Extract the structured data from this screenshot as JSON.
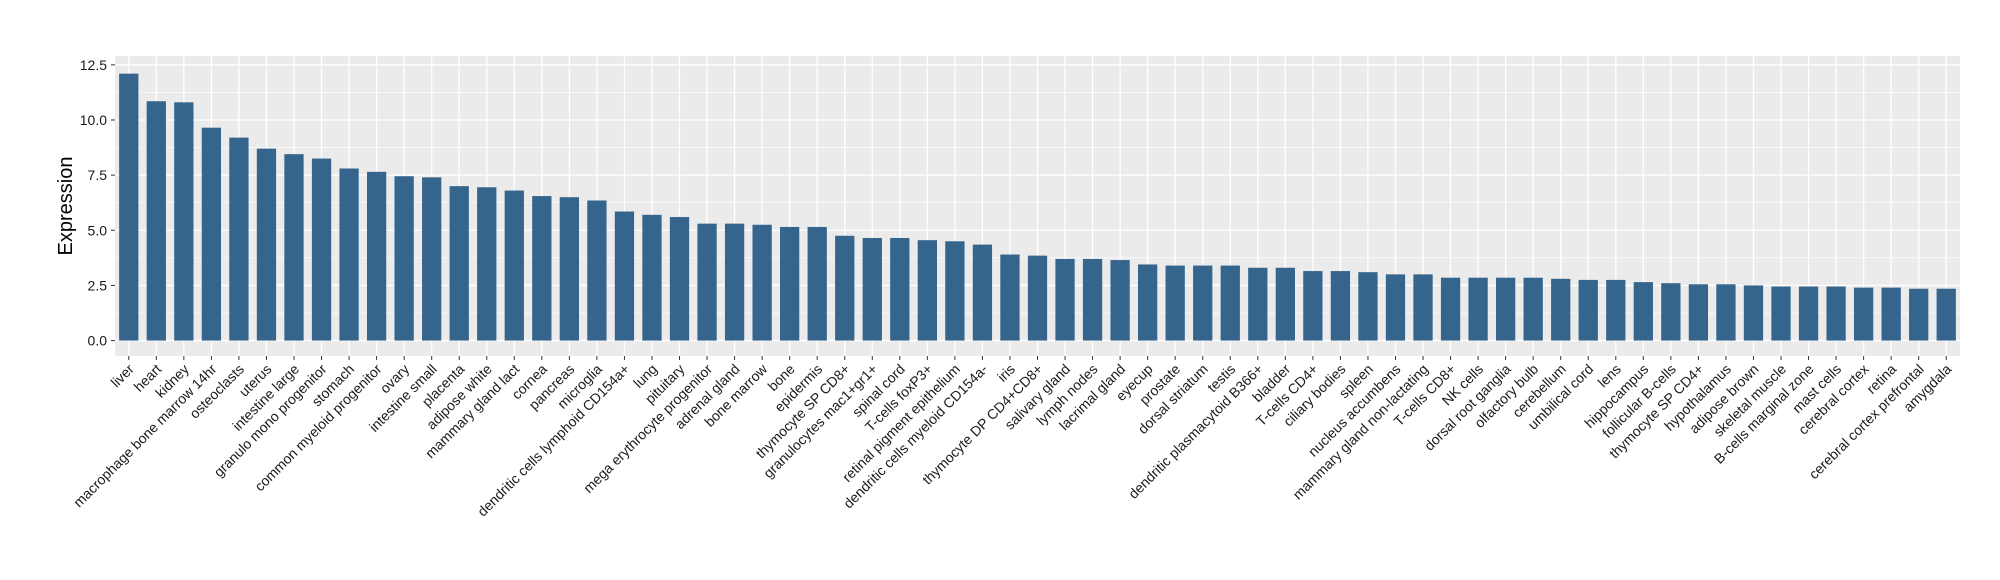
{
  "chart_data": {
    "type": "bar",
    "title": "",
    "xlabel": "",
    "ylabel": "Expression",
    "ylim": [
      -0.7,
      12.9
    ],
    "y_ticks": [
      "0.0",
      "2.5",
      "5.0",
      "7.5",
      "10.0",
      "12.5"
    ],
    "y_tick_values": [
      0,
      2.5,
      5,
      7.5,
      10,
      12.5
    ],
    "grid": true,
    "colors": {
      "bar": "#35648c",
      "panel": "#ebebeb",
      "grid": "#ffffff"
    },
    "categories": [
      "liver",
      "heart",
      "kidney",
      "macrophage bone marrow 14hr",
      "osteoclasts",
      "uterus",
      "intestine large",
      "granulo mono progenitor",
      "stomach",
      "common myeloid progenitor",
      "ovary",
      "intestine small",
      "placenta",
      "adipose white",
      "mammary gland lact",
      "cornea",
      "pancreas",
      "microglia",
      "dendritic cells lymphoid CD154a+",
      "lung",
      "pituitary",
      "mega erythrocyte progenitor",
      "adrenal gland",
      "bone marrow",
      "bone",
      "epidermis",
      "thymocyte SP CD8+",
      "granulocytes mac1+gr1+",
      "spinal cord",
      "T-cells foxP3+",
      "retinal pigment epithelium",
      "dendritic cells myeloid CD154a-",
      "iris",
      "thymocyte DP CD4+CD8+",
      "salivary gland",
      "lymph nodes",
      "lacrimal gland",
      "eyecup",
      "prostate",
      "dorsal striatum",
      "testis",
      "dendritic plasmacytoid B366+",
      "bladder",
      "T-cells CD4+",
      "ciliary bodies",
      "spleen",
      "nucleus accumbens",
      "mammary gland non-lactating",
      "T-cells CD8+",
      "NK cells",
      "dorsal root ganglia",
      "olfactory bulb",
      "cerebellum",
      "umbilical cord",
      "lens",
      "hippocampus",
      "follicular B-cells",
      "thymocyte SP CD4+",
      "hypothalamus",
      "adipose brown",
      "skeletal muscle",
      "B-cells marginal zone",
      "mast cells",
      "cerebral cortex",
      "retina",
      "cerebral cortex prefrontal",
      "amygdala"
    ],
    "values": [
      12.1,
      10.85,
      10.8,
      9.65,
      9.2,
      8.7,
      8.45,
      8.25,
      7.8,
      7.65,
      7.45,
      7.4,
      7.0,
      6.95,
      6.8,
      6.55,
      6.5,
      6.35,
      5.85,
      5.7,
      5.6,
      5.3,
      5.3,
      5.25,
      5.15,
      5.15,
      4.75,
      4.65,
      4.65,
      4.55,
      4.5,
      4.35,
      3.9,
      3.85,
      3.7,
      3.7,
      3.65,
      3.45,
      3.4,
      3.4,
      3.4,
      3.3,
      3.3,
      3.15,
      3.15,
      3.1,
      3.0,
      3.0,
      2.85,
      2.85,
      2.85,
      2.85,
      2.8,
      2.75,
      2.75,
      2.65,
      2.6,
      2.55,
      2.55,
      2.5,
      2.45,
      2.45,
      2.45,
      2.4,
      2.4,
      2.35,
      2.35
    ]
  }
}
